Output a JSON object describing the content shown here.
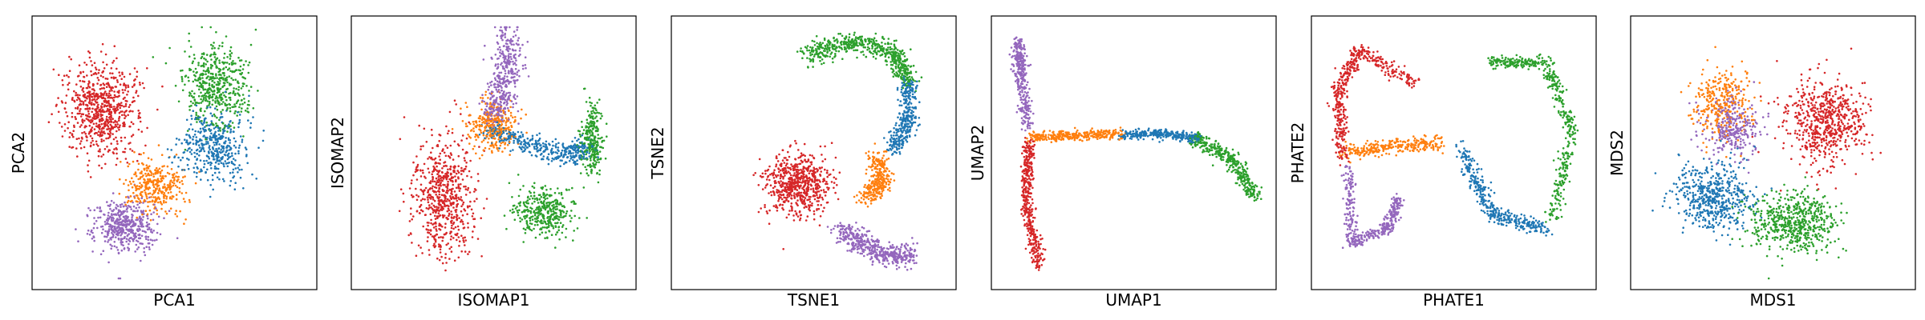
{
  "colors": {
    "blue": "#1f77b4",
    "orange": "#ff7f0e",
    "green": "#2ca02c",
    "red": "#d62728",
    "purple": "#9467bd"
  },
  "chart_data": [
    {
      "type": "scatter",
      "xlabel": "PCA1",
      "ylabel": "PCA2",
      "ticks": "none",
      "grid": false,
      "xlim": [
        -1,
        1
      ],
      "ylim": [
        -1,
        1
      ],
      "clusters": [
        {
          "color": "green",
          "shape": "blob",
          "center": [
            0.32,
            0.52
          ],
          "spread": [
            0.22,
            0.3
          ],
          "n": 500
        },
        {
          "color": "blue",
          "shape": "blob",
          "center": [
            0.3,
            0.05
          ],
          "spread": [
            0.22,
            0.25
          ],
          "n": 420
        },
        {
          "color": "orange",
          "shape": "blob",
          "center": [
            -0.15,
            -0.25
          ],
          "spread": [
            0.2,
            0.2
          ],
          "n": 340
        },
        {
          "color": "purple",
          "shape": "blob",
          "center": [
            -0.38,
            -0.58
          ],
          "spread": [
            0.22,
            0.2
          ],
          "n": 460
        },
        {
          "color": "red",
          "shape": "blob",
          "center": [
            -0.55,
            0.35
          ],
          "spread": [
            0.25,
            0.32
          ],
          "n": 700
        }
      ]
    },
    {
      "type": "scatter",
      "xlabel": "ISOMAP1",
      "ylabel": "ISOMAP2",
      "ticks": "none",
      "grid": false,
      "xlim": [
        -1,
        1
      ],
      "ylim": [
        -1,
        1
      ],
      "clusters": [
        {
          "color": "green",
          "shape": "blob",
          "center": [
            0.75,
            0.1
          ],
          "spread": [
            0.08,
            0.28
          ],
          "n": 260
        },
        {
          "color": "green",
          "shape": "blob",
          "center": [
            0.38,
            -0.48
          ],
          "spread": [
            0.22,
            0.18
          ],
          "n": 360
        },
        {
          "color": "blue",
          "shape": "curve",
          "points": [
            [
              -0.05,
              0.18
            ],
            [
              0.25,
              0.08
            ],
            [
              0.55,
              -0.02
            ],
            [
              0.72,
              0.05
            ]
          ],
          "width": 0.09,
          "n": 380
        },
        {
          "color": "purple",
          "shape": "curve",
          "points": [
            [
              0.1,
              0.95
            ],
            [
              0.12,
              0.7
            ],
            [
              0.05,
              0.45
            ],
            [
              0.02,
              0.3
            ]
          ],
          "width": 0.11,
          "n": 420
        },
        {
          "color": "orange",
          "shape": "blob",
          "center": [
            0.0,
            0.22
          ],
          "spread": [
            0.16,
            0.18
          ],
          "n": 300
        },
        {
          "color": "red",
          "shape": "blob",
          "center": [
            -0.38,
            -0.35
          ],
          "spread": [
            0.22,
            0.42
          ],
          "n": 640
        }
      ]
    },
    {
      "type": "scatter",
      "xlabel": "TSNE1",
      "ylabel": "TSNE2",
      "ticks": "none",
      "grid": false,
      "xlim": [
        -1,
        1
      ],
      "ylim": [
        -1,
        1
      ],
      "clusters": [
        {
          "color": "green",
          "shape": "curve",
          "points": [
            [
              -0.05,
              0.78
            ],
            [
              0.3,
              0.88
            ],
            [
              0.62,
              0.8
            ],
            [
              0.72,
              0.58
            ]
          ],
          "width": 0.08,
          "n": 560
        },
        {
          "color": "blue",
          "shape": "curve",
          "points": [
            [
              0.72,
              0.55
            ],
            [
              0.72,
              0.25
            ],
            [
              0.6,
              0.02
            ]
          ],
          "width": 0.07,
          "n": 320
        },
        {
          "color": "orange",
          "shape": "curve",
          "points": [
            [
              0.5,
              -0.02
            ],
            [
              0.52,
              -0.25
            ],
            [
              0.4,
              -0.35
            ]
          ],
          "width": 0.08,
          "n": 300
        },
        {
          "color": "red",
          "shape": "blob",
          "center": [
            -0.12,
            -0.25
          ],
          "spread": [
            0.22,
            0.22
          ],
          "n": 640
        },
        {
          "color": "purple",
          "shape": "curve",
          "points": [
            [
              0.2,
              -0.6
            ],
            [
              0.5,
              -0.8
            ],
            [
              0.75,
              -0.82
            ]
          ],
          "width": 0.09,
          "n": 460
        }
      ]
    },
    {
      "type": "scatter",
      "xlabel": "UMAP1",
      "ylabel": "UMAP2",
      "ticks": "none",
      "grid": false,
      "xlim": [
        -1,
        1
      ],
      "ylim": [
        -1,
        1
      ],
      "clusters": [
        {
          "color": "purple",
          "shape": "curve",
          "points": [
            [
              -0.88,
              0.88
            ],
            [
              -0.86,
              0.6
            ],
            [
              -0.8,
              0.2
            ]
          ],
          "width": 0.05,
          "n": 340
        },
        {
          "color": "red",
          "shape": "curve",
          "points": [
            [
              -0.8,
              0.1
            ],
            [
              -0.82,
              -0.4
            ],
            [
              -0.72,
              -0.9
            ]
          ],
          "width": 0.05,
          "n": 420
        },
        {
          "color": "orange",
          "shape": "curve",
          "points": [
            [
              -0.8,
              0.12
            ],
            [
              -0.45,
              0.14
            ],
            [
              -0.1,
              0.15
            ]
          ],
          "width": 0.04,
          "n": 300
        },
        {
          "color": "blue",
          "shape": "curve",
          "points": [
            [
              -0.1,
              0.15
            ],
            [
              0.2,
              0.15
            ],
            [
              0.5,
              0.12
            ]
          ],
          "width": 0.04,
          "n": 300
        },
        {
          "color": "green",
          "shape": "curve",
          "points": [
            [
              0.45,
              0.12
            ],
            [
              0.75,
              -0.05
            ],
            [
              0.92,
              -0.35
            ]
          ],
          "width": 0.06,
          "n": 380
        }
      ]
    },
    {
      "type": "scatter",
      "xlabel": "PHATE1",
      "ylabel": "PHATE2",
      "ticks": "none",
      "grid": false,
      "xlim": [
        -1,
        1
      ],
      "ylim": [
        -1,
        1
      ],
      "clusters": [
        {
          "color": "red",
          "shape": "curve",
          "points": [
            [
              -0.3,
              0.55
            ],
            [
              -0.72,
              0.82
            ],
            [
              -0.88,
              0.5
            ],
            [
              -0.85,
              -0.05
            ]
          ],
          "width": 0.06,
          "n": 460
        },
        {
          "color": "orange",
          "shape": "curve",
          "points": [
            [
              -0.85,
              0.0
            ],
            [
              -0.5,
              0.05
            ],
            [
              -0.1,
              0.08
            ]
          ],
          "width": 0.06,
          "n": 280
        },
        {
          "color": "purple",
          "shape": "curve",
          "points": [
            [
              -0.8,
              -0.1
            ],
            [
              -0.78,
              -0.72
            ],
            [
              -0.5,
              -0.6
            ],
            [
              -0.42,
              -0.35
            ]
          ],
          "width": 0.05,
          "n": 380
        },
        {
          "color": "blue",
          "shape": "curve",
          "points": [
            [
              0.05,
              0.05
            ],
            [
              0.3,
              -0.5
            ],
            [
              0.7,
              -0.6
            ]
          ],
          "width": 0.06,
          "n": 380
        },
        {
          "color": "green",
          "shape": "curve",
          "points": [
            [
              0.75,
              -0.55
            ],
            [
              0.9,
              0.2
            ],
            [
              0.7,
              0.72
            ],
            [
              0.28,
              0.72
            ]
          ],
          "width": 0.05,
          "n": 460
        }
      ]
    },
    {
      "type": "scatter",
      "xlabel": "MDS1",
      "ylabel": "MDS2",
      "ticks": "none",
      "grid": false,
      "xlim": [
        -1,
        1
      ],
      "ylim": [
        -1,
        1
      ],
      "clusters": [
        {
          "color": "orange",
          "shape": "blob",
          "center": [
            -0.4,
            0.4
          ],
          "spread": [
            0.22,
            0.26
          ],
          "n": 320
        },
        {
          "color": "purple",
          "shape": "blob",
          "center": [
            -0.3,
            0.2
          ],
          "spread": [
            0.2,
            0.22
          ],
          "n": 300
        },
        {
          "color": "blue",
          "shape": "blob",
          "center": [
            -0.45,
            -0.35
          ],
          "spread": [
            0.28,
            0.25
          ],
          "n": 520
        },
        {
          "color": "green",
          "shape": "blob",
          "center": [
            0.15,
            -0.55
          ],
          "spread": [
            0.32,
            0.22
          ],
          "n": 580
        },
        {
          "color": "red",
          "shape": "blob",
          "center": [
            0.4,
            0.25
          ],
          "spread": [
            0.28,
            0.3
          ],
          "n": 640
        }
      ]
    }
  ]
}
